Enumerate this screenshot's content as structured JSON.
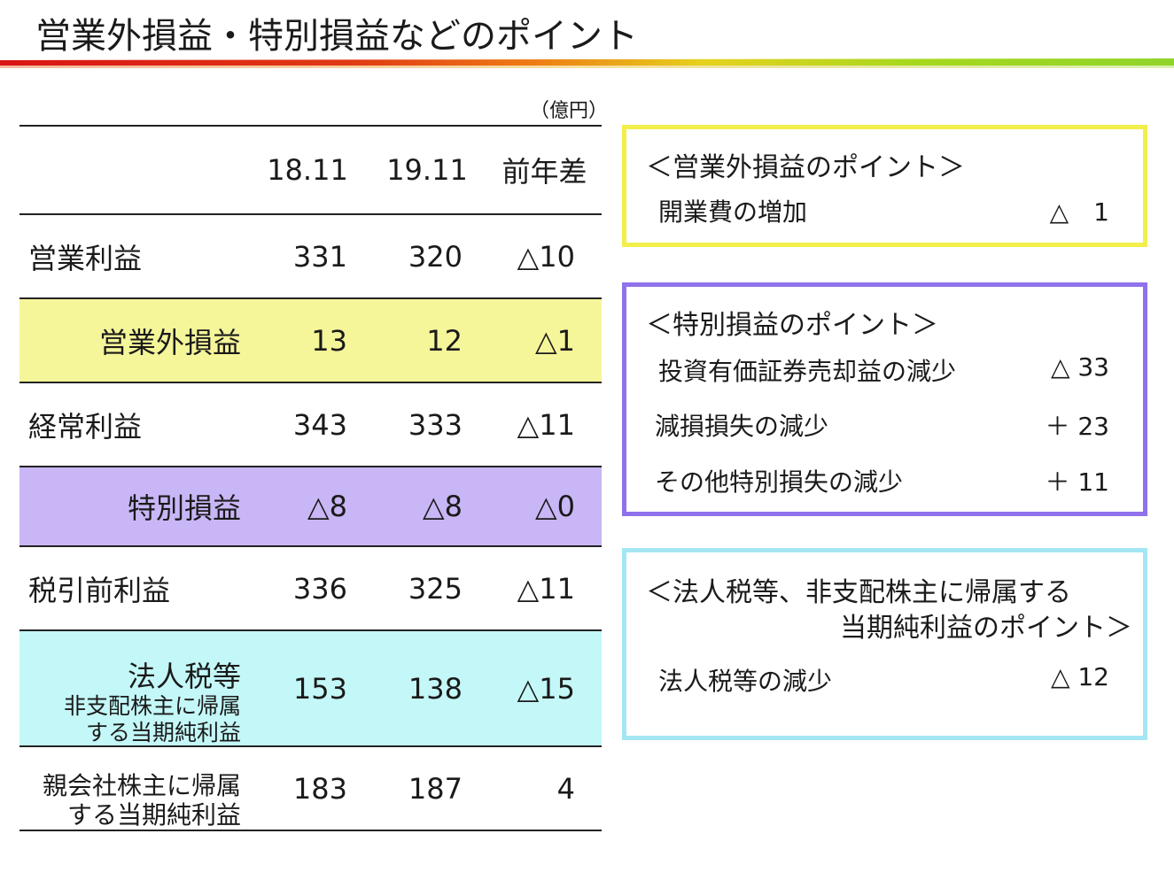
{
  "title": "営業外損益・特別損益などのポイント",
  "colors": {
    "yellow": "#f5f59a",
    "purple": "#c9b6f6",
    "cyan": "#c4f7f7",
    "box_yellow": "#f2ee4a",
    "box_purple": "#8f72ea",
    "box_cyan": "#a4e6f4"
  },
  "table": {
    "unit": "（億円）",
    "headers": [
      "",
      "18.11",
      "19.11",
      "前年差"
    ],
    "rows": [
      {
        "label": "営業利益",
        "v1": "331",
        "v2": "320",
        "diff": "△10"
      },
      {
        "label": "営業外損益",
        "v1": "13",
        "v2": "12",
        "diff": "△1"
      },
      {
        "label": "経常利益",
        "v1": "343",
        "v2": "333",
        "diff": "△11"
      },
      {
        "label": "特別損益",
        "v1": "△8",
        "v2": "△8",
        "diff": "△0"
      },
      {
        "label": "税引前利益",
        "v1": "336",
        "v2": "325",
        "diff": "△11"
      },
      {
        "label_lines": [
          "法人税等",
          "非支配株主に帰属",
          "する当期純利益"
        ],
        "v1": "153",
        "v2": "138",
        "diff": "△15"
      },
      {
        "label_lines": [
          "親会社株主に帰属",
          "する当期純利益"
        ],
        "v1": "183",
        "v2": "187",
        "diff": "4"
      }
    ]
  },
  "boxes": {
    "non_operating": {
      "heading": "＜営業外損益のポイント＞",
      "items": [
        {
          "label": "開業費の増加",
          "value": "△　1"
        }
      ]
    },
    "extraordinary": {
      "heading": "＜特別損益のポイント＞",
      "items": [
        {
          "label": "投資有価証券売却益の減少",
          "value": "△ 33"
        },
        {
          "label": "減損損失の減少",
          "value": "＋ 23"
        },
        {
          "label": "その他特別損失の減少",
          "value": "＋ 11"
        }
      ]
    },
    "tax": {
      "heading_line1": "＜法人税等、非支配株主に帰属する",
      "heading_line2": "当期純利益のポイント＞",
      "items": [
        {
          "label": "法人税等の減少",
          "value": "△ 12"
        }
      ]
    }
  }
}
